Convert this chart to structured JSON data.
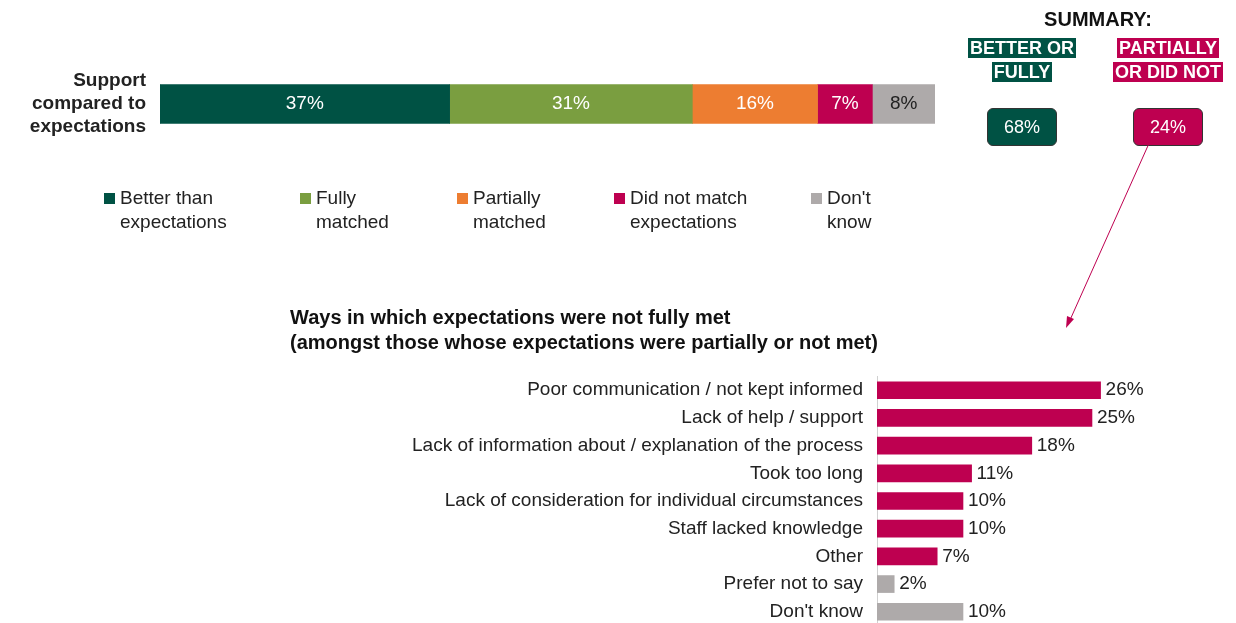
{
  "chart_data": [
    {
      "type": "bar",
      "orientation": "horizontal",
      "stacked": true,
      "categories": [
        "Support compared to expectations"
      ],
      "legend": "bottom",
      "series": [
        {
          "name": "Better than expectations",
          "color": "#005244",
          "values": [
            37
          ],
          "value_labels": [
            "37%"
          ]
        },
        {
          "name": "Fully matched",
          "color": "#7a9e40",
          "values": [
            31
          ],
          "value_labels": [
            "31%"
          ]
        },
        {
          "name": "Partially matched",
          "color": "#ed7d31",
          "values": [
            16
          ],
          "value_labels": [
            "16%"
          ]
        },
        {
          "name": "Did not match expectations",
          "color": "#be0050",
          "values": [
            7
          ],
          "value_labels": [
            "7%"
          ]
        },
        {
          "name": "Don't know",
          "color": "#aeaaaa",
          "values": [
            8
          ],
          "value_labels": [
            "8%"
          ]
        }
      ]
    },
    {
      "type": "other",
      "title": "SUMMARY:",
      "categories": [
        "BETTER OR FULLY",
        "PARTIALLY OR DID NOT"
      ],
      "values": [
        68,
        24
      ],
      "colors": [
        "#005244",
        "#be0050"
      ],
      "value_labels": [
        "68%",
        "24%"
      ]
    },
    {
      "type": "bar",
      "orientation": "horizontal",
      "title": "Ways in which expectations were not fully met",
      "subtitle": "(amongst those whose expectations were partially or not met)",
      "categories": [
        "Poor communication / not kept informed",
        "Lack of help / support",
        "Lack of information about / explanation of the process",
        "Took too long",
        "Lack of consideration for individual circumstances",
        "Staff lacked knowledge",
        "Other",
        "Prefer not to say",
        "Don't know"
      ],
      "values": [
        26,
        25,
        18,
        11,
        10,
        10,
        7,
        2,
        10
      ],
      "colors": [
        "#be0050",
        "#be0050",
        "#be0050",
        "#be0050",
        "#be0050",
        "#be0050",
        "#be0050",
        "#aeaaaa",
        "#aeaaaa"
      ],
      "value_labels": [
        "26%",
        "25%",
        "18%",
        "11%",
        "10%",
        "10%",
        "7%",
        "2%",
        "10%"
      ]
    }
  ]
}
